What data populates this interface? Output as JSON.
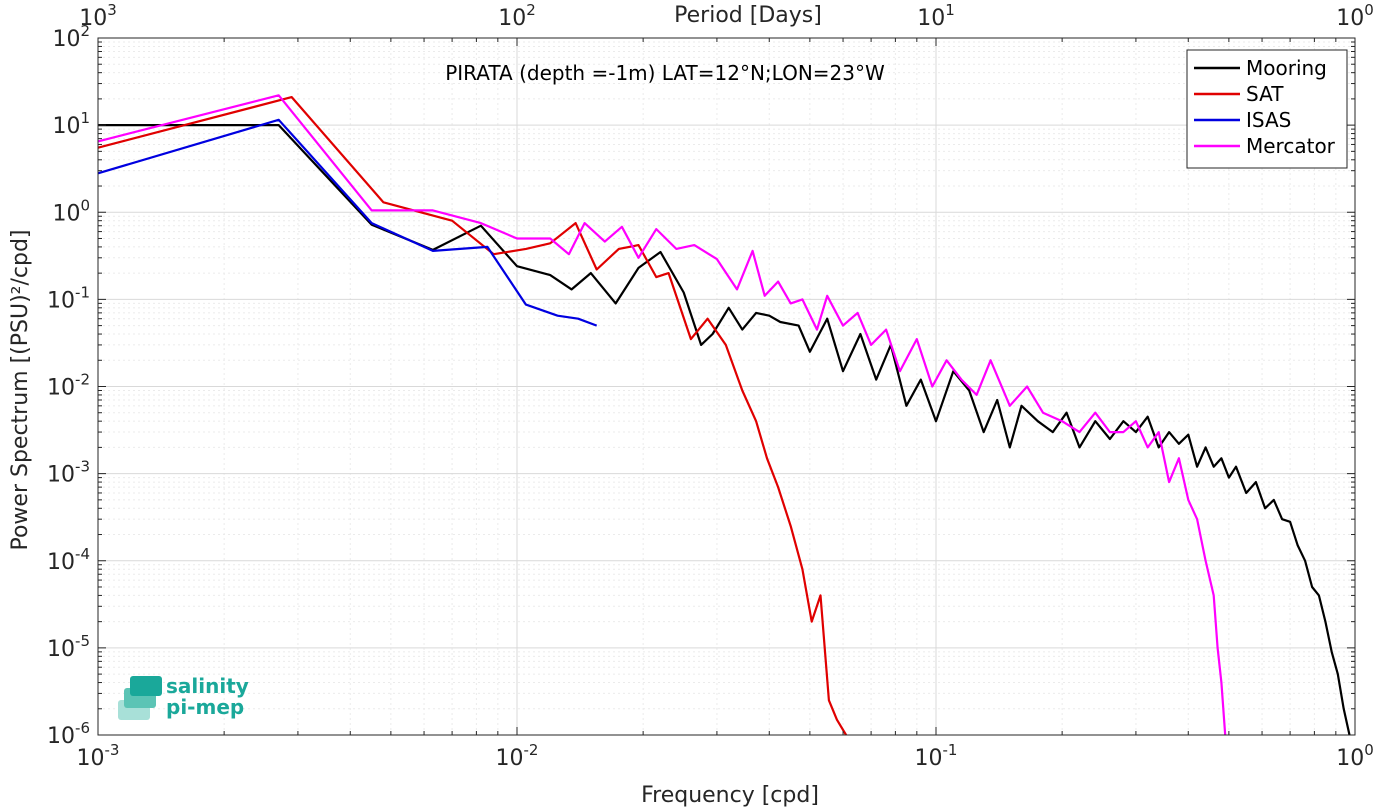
{
  "chart_data": {
    "type": "line",
    "title": "PIRATA (depth =-1m) LAT=12°N;LON=23°W",
    "xlabel": "Frequency [cpd]",
    "ylabel": "Power Spectrum [(PSU)²/cpd]",
    "x2label": "Period [Days]",
    "xscale": "log",
    "yscale": "log",
    "xlim": [
      0.001,
      1
    ],
    "ylim": [
      1e-06,
      100
    ],
    "grid": true,
    "legend_position": "top-right",
    "x_ticks": [
      {
        "base": "10",
        "exp": "-3"
      },
      {
        "base": "10",
        "exp": "-2"
      },
      {
        "base": "10",
        "exp": "-1"
      },
      {
        "base": "10",
        "exp": "0"
      }
    ],
    "x2_ticks": [
      {
        "base": "10",
        "exp": "3"
      },
      {
        "base": "10",
        "exp": "2"
      },
      {
        "base": "10",
        "exp": "1"
      },
      {
        "base": "10",
        "exp": "0"
      }
    ],
    "y_ticks": [
      {
        "base": "10",
        "exp": "2"
      },
      {
        "base": "10",
        "exp": "1"
      },
      {
        "base": "10",
        "exp": "0"
      },
      {
        "base": "10",
        "exp": "-1"
      },
      {
        "base": "10",
        "exp": "-2"
      },
      {
        "base": "10",
        "exp": "-3"
      },
      {
        "base": "10",
        "exp": "-4"
      },
      {
        "base": "10",
        "exp": "-5"
      },
      {
        "base": "10",
        "exp": "-6"
      }
    ],
    "series": [
      {
        "name": "Mooring",
        "color": "#000000",
        "x": [
          0.001,
          0.0027,
          0.0045,
          0.0063,
          0.0082,
          0.01,
          0.012,
          0.0135,
          0.015,
          0.0172,
          0.0195,
          0.022,
          0.025,
          0.0275,
          0.0293,
          0.032,
          0.0345,
          0.0372,
          0.04,
          0.0425,
          0.047,
          0.05,
          0.055,
          0.06,
          0.066,
          0.072,
          0.078,
          0.085,
          0.092,
          0.1,
          0.11,
          0.12,
          0.13,
          0.14,
          0.15,
          0.16,
          0.175,
          0.19,
          0.205,
          0.22,
          0.24,
          0.26,
          0.28,
          0.3,
          0.32,
          0.34,
          0.36,
          0.38,
          0.4,
          0.42,
          0.44,
          0.46,
          0.48,
          0.5,
          0.52,
          0.55,
          0.58,
          0.61,
          0.64,
          0.67,
          0.7,
          0.73,
          0.76,
          0.79,
          0.82,
          0.85,
          0.88,
          0.91,
          0.94,
          0.97
        ],
        "y": [
          10,
          10,
          0.72,
          0.37,
          0.7,
          0.24,
          0.19,
          0.13,
          0.2,
          0.09,
          0.23,
          0.35,
          0.12,
          0.03,
          0.04,
          0.08,
          0.045,
          0.07,
          0.065,
          0.055,
          0.05,
          0.025,
          0.06,
          0.015,
          0.04,
          0.012,
          0.03,
          0.006,
          0.012,
          0.004,
          0.015,
          0.009,
          0.003,
          0.007,
          0.002,
          0.006,
          0.004,
          0.003,
          0.005,
          0.002,
          0.004,
          0.0025,
          0.004,
          0.003,
          0.0045,
          0.002,
          0.003,
          0.0022,
          0.0028,
          0.0012,
          0.002,
          0.0012,
          0.0015,
          0.0009,
          0.0012,
          0.0006,
          0.0008,
          0.0004,
          0.0005,
          0.0003,
          0.00028,
          0.00015,
          0.0001,
          5e-05,
          4e-05,
          2e-05,
          9e-06,
          5e-06,
          2e-06,
          1e-06
        ]
      },
      {
        "name": "SAT",
        "color": "#e00000",
        "x": [
          0.001,
          0.0029,
          0.0048,
          0.007,
          0.0088,
          0.0105,
          0.012,
          0.0138,
          0.0155,
          0.0175,
          0.0195,
          0.0215,
          0.023,
          0.026,
          0.0285,
          0.0315,
          0.0345,
          0.0372,
          0.0395,
          0.042,
          0.045,
          0.048,
          0.0505,
          0.053,
          0.0555,
          0.058,
          0.061
        ],
        "y": [
          5.5,
          21,
          1.3,
          0.8,
          0.33,
          0.38,
          0.44,
          0.75,
          0.22,
          0.38,
          0.42,
          0.18,
          0.2,
          0.035,
          0.06,
          0.03,
          0.009,
          0.004,
          0.0015,
          0.0007,
          0.00025,
          8e-05,
          2e-05,
          4e-05,
          2.5e-06,
          1.5e-06,
          1e-06
        ]
      },
      {
        "name": "ISAS",
        "color": "#0000e0",
        "x": [
          0.001,
          0.0027,
          0.0045,
          0.0063,
          0.0085,
          0.0105,
          0.0125,
          0.014,
          0.0155
        ],
        "y": [
          2.8,
          11.5,
          0.75,
          0.36,
          0.4,
          0.087,
          0.065,
          0.06,
          0.05
        ]
      },
      {
        "name": "Mercator",
        "color": "#ff00ff",
        "x": [
          0.001,
          0.0027,
          0.0045,
          0.0063,
          0.0082,
          0.01,
          0.012,
          0.0133,
          0.0145,
          0.0162,
          0.0178,
          0.0195,
          0.0215,
          0.024,
          0.0265,
          0.03,
          0.0335,
          0.0365,
          0.039,
          0.042,
          0.045,
          0.048,
          0.052,
          0.055,
          0.06,
          0.065,
          0.07,
          0.076,
          0.082,
          0.09,
          0.098,
          0.106,
          0.115,
          0.125,
          0.135,
          0.15,
          0.165,
          0.18,
          0.2,
          0.22,
          0.24,
          0.26,
          0.28,
          0.3,
          0.32,
          0.34,
          0.36,
          0.38,
          0.4,
          0.42,
          0.44,
          0.46,
          0.47,
          0.48,
          0.49
        ],
        "y": [
          6.5,
          22,
          1.05,
          1.05,
          0.75,
          0.5,
          0.5,
          0.33,
          0.75,
          0.46,
          0.68,
          0.3,
          0.64,
          0.38,
          0.42,
          0.29,
          0.13,
          0.36,
          0.11,
          0.16,
          0.09,
          0.1,
          0.045,
          0.11,
          0.05,
          0.07,
          0.03,
          0.045,
          0.015,
          0.035,
          0.01,
          0.02,
          0.012,
          0.008,
          0.02,
          0.006,
          0.01,
          0.005,
          0.004,
          0.003,
          0.005,
          0.003,
          0.003,
          0.004,
          0.002,
          0.003,
          0.0008,
          0.0015,
          0.0005,
          0.0003,
          0.0001,
          4e-05,
          1e-05,
          4e-06,
          1e-06
        ]
      }
    ]
  },
  "logo": {
    "line1": "salinity",
    "line2": "pi-mep"
  }
}
